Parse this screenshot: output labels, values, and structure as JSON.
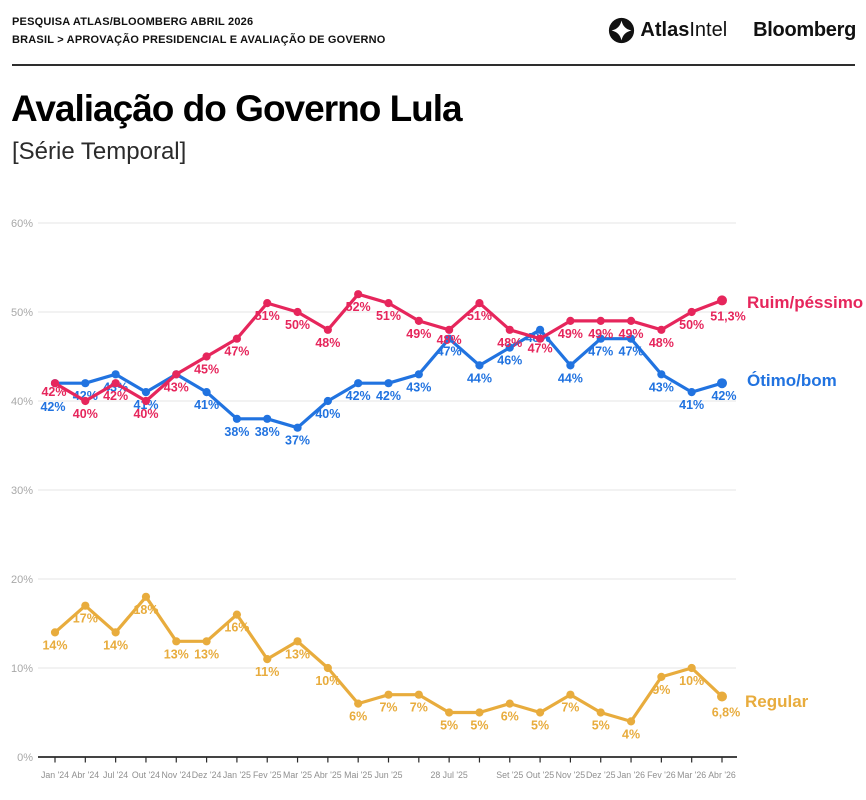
{
  "header": {
    "kicker_line1": "PESQUISA ATLAS/BLOOMBERG ABRIL 2026",
    "kicker_line2": "BRASIL > APROVAÇÃO PRESIDENCIAL E AVALIAÇÃO DE GOVERNO",
    "logos": {
      "atlasintel_bold": "Atlas",
      "atlasintel_light": "Intel",
      "bloomberg": "Bloomberg"
    }
  },
  "title": "Avaliação do Governo Lula",
  "subtitle": "[Série Temporal]",
  "colors": {
    "ruim": "#e6265c",
    "otimo": "#2173e0",
    "regular": "#e8ac3d",
    "grid": "#eaeaea",
    "axis": "#2a2a2a",
    "y_tick_text": "#a8a8a8",
    "x_tick_text": "#8f8f8f"
  },
  "chart_data": {
    "type": "line",
    "title": "Avaliação do Governo Lula",
    "subtitle": "[Série Temporal]",
    "ylim": [
      0,
      60
    ],
    "grid": true,
    "legend_position": "right",
    "y_ticks": [
      {
        "label": "60%",
        "value": 60
      },
      {
        "label": "50%",
        "value": 50
      },
      {
        "label": "40%",
        "value": 40
      },
      {
        "label": "30%",
        "value": 30
      },
      {
        "label": "20%",
        "value": 20
      },
      {
        "label": "10%",
        "value": 10
      },
      {
        "label": "0%",
        "value": 0
      }
    ],
    "x_labels": [
      "Jan '24",
      "Abr '24",
      "Jul '24",
      "Out '24",
      "Nov '24",
      "Dez '24",
      "Jan '25",
      "Fev '25",
      "Mar '25",
      "Abr '25",
      "Mai '25",
      "Jun '25",
      "",
      "28 Jul '25",
      "",
      "Set '25",
      "Out '25",
      "Nov '25",
      "Dez '25",
      "Jan '26",
      "Fev '26",
      "Mar '26",
      "Abr '26"
    ],
    "series": [
      {
        "name": "Ruim/péssimo",
        "color": "#e6265c",
        "values": [
          42,
          40,
          42,
          40,
          43,
          45,
          47,
          51,
          50,
          48,
          52,
          51,
          49,
          48,
          51,
          48,
          47,
          49,
          49,
          49,
          48,
          50,
          51.3
        ],
        "point_labels": [
          "42%",
          "40%",
          "42%",
          "40%",
          "43%",
          "45%",
          "47%",
          "51%",
          "50%",
          "48%",
          "52%",
          "51%",
          "49%",
          "48%",
          "51%",
          "48%",
          "47%",
          "49%",
          "49%",
          "49%",
          "48%",
          "50%",
          "51,3%"
        ]
      },
      {
        "name": "Ótimo/bom",
        "color": "#2173e0",
        "values": [
          42,
          42,
          43,
          41,
          43,
          41,
          38,
          38,
          37,
          40,
          42,
          42,
          43,
          47,
          44,
          46,
          48,
          44,
          47,
          47,
          43,
          41,
          42
        ],
        "point_labels": [
          "42%",
          "42%",
          "43%",
          "41%",
          "",
          "41%",
          "38%",
          "38%",
          "37%",
          "40%",
          "42%",
          "42%",
          "43%",
          "47%",
          "44%",
          "46%",
          "48%",
          "44%",
          "47%",
          "47%",
          "43%",
          "41%",
          "42%"
        ]
      },
      {
        "name": "Regular",
        "color": "#e8ac3d",
        "values": [
          14,
          17,
          14,
          18,
          13,
          13,
          16,
          11,
          13,
          10,
          6,
          7,
          7,
          5,
          5,
          6,
          5,
          7,
          5,
          4,
          9,
          10,
          6.8
        ],
        "point_labels": [
          "14%",
          "17%",
          "14%",
          "18%",
          "13%",
          "13%",
          "16%",
          "11%",
          "13%",
          "10%",
          "6%",
          "7%",
          "7%",
          "5%",
          "5%",
          "6%",
          "5%",
          "7%",
          "5%",
          "4%",
          "9%",
          "10%",
          "6,8%"
        ]
      }
    ]
  }
}
